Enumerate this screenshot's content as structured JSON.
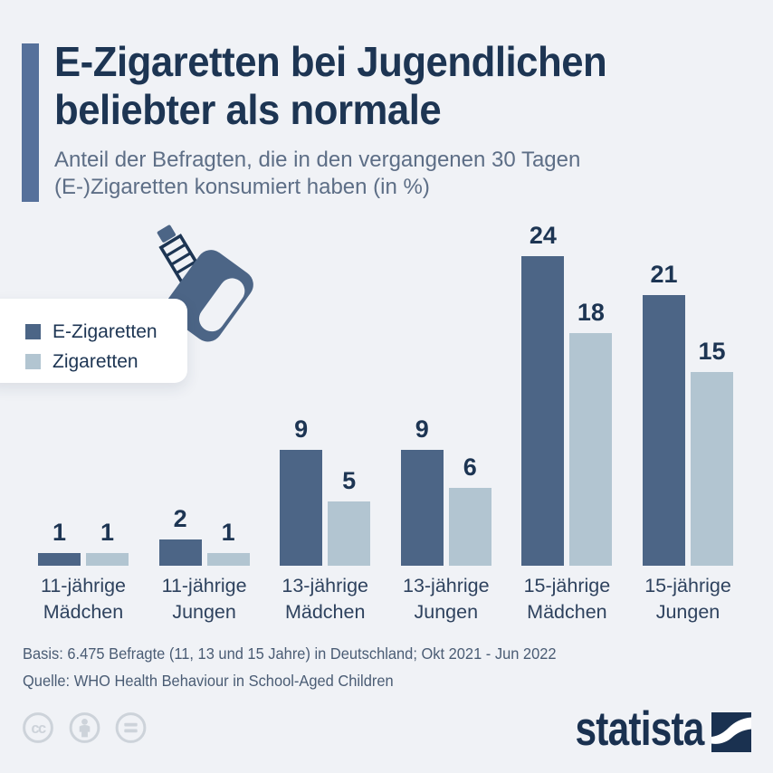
{
  "title": {
    "line1": "E-Zigaretten bei Jugendlichen",
    "line2": "beliebter als normale"
  },
  "subtitle": {
    "line1": "Anteil der Befragten, die in den vergangenen 30 Tagen",
    "line2": "(E-)Zigaretten konsumiert haben (in %)"
  },
  "legend": {
    "items": [
      {
        "label": "E-Zigaretten",
        "color": "#4c6586"
      },
      {
        "label": "Zigaretten",
        "color": "#b2c5d1"
      }
    ]
  },
  "chart_data": {
    "type": "bar",
    "unit": "%",
    "categories": [
      "11-jährige\nMädchen",
      "11-jährige\nJungen",
      "13-jährige\nMädchen",
      "13-jährige\nJungen",
      "15-jährige\nMädchen",
      "15-jährige\nJungen"
    ],
    "series": [
      {
        "name": "E-Zigaretten",
        "color": "#4c6586",
        "values": [
          1,
          2,
          9,
          9,
          24,
          21
        ]
      },
      {
        "name": "Zigaretten",
        "color": "#b2c5d1",
        "values": [
          1,
          1,
          5,
          6,
          18,
          15
        ]
      }
    ],
    "ylim": [
      0,
      26
    ],
    "value_labels": true,
    "axes": "none",
    "grid": false,
    "legend_position": "left"
  },
  "footer": {
    "basis": "Basis: 6.475 Befragte (11, 13 und 15 Jahre) in Deutschland; Okt 2021 - Jun 2022",
    "quelle": "Quelle: WHO Health Behaviour in School-Aged Children"
  },
  "branding": {
    "logo_text": "statista"
  },
  "license": {
    "icons": [
      "cc-icon",
      "cc-by-icon",
      "cc-nd-icon"
    ]
  },
  "icons": {
    "decoration": "vape-device-icon"
  },
  "colors": {
    "background": "#f0f2f6",
    "navy": "#1d3553",
    "subtitle": "#5d6e86",
    "accent": "#56719b",
    "bar_dark": "#4c6586",
    "bar_light": "#b2c5d1",
    "category_label": "#2e425e",
    "footer_text": "#4a5c74",
    "license_gray": "#cdd3da",
    "logo_navy": "#1a3150"
  }
}
